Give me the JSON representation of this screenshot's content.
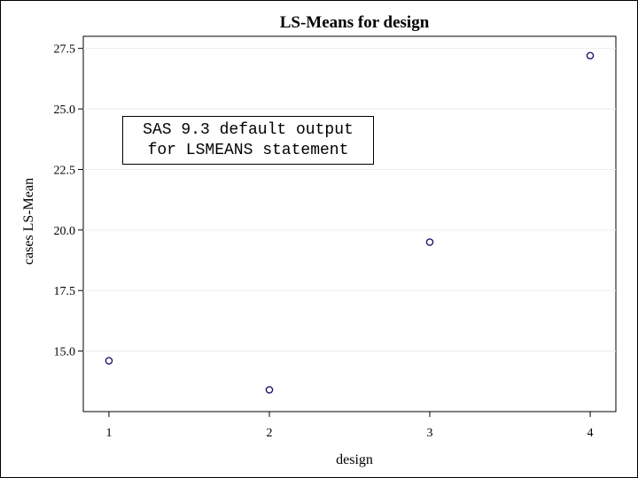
{
  "chart_data": {
    "type": "scatter",
    "title": "LS-Means for design",
    "xlabel": "design",
    "ylabel": "cases LS-Mean",
    "x": [
      1,
      2,
      3,
      4
    ],
    "y": [
      14.6,
      13.4,
      19.5,
      27.2
    ],
    "xticks": [
      "1",
      "2",
      "3",
      "4"
    ],
    "yticks": [
      15.0,
      17.5,
      20.0,
      22.5,
      25.0,
      27.5
    ],
    "ytick_labels": [
      "15.0",
      "17.5",
      "20.0",
      "22.5",
      "25.0",
      "27.5"
    ],
    "xlim": [
      0.84,
      4.16
    ],
    "ylim": [
      12.5,
      28.0
    ],
    "grid": "horizontal",
    "marker": "open-circle",
    "marker_color": "#1a1a6e",
    "annotation": {
      "lines": [
        "SAS 9.3 default output",
        "for LSMEANS statement"
      ]
    }
  }
}
